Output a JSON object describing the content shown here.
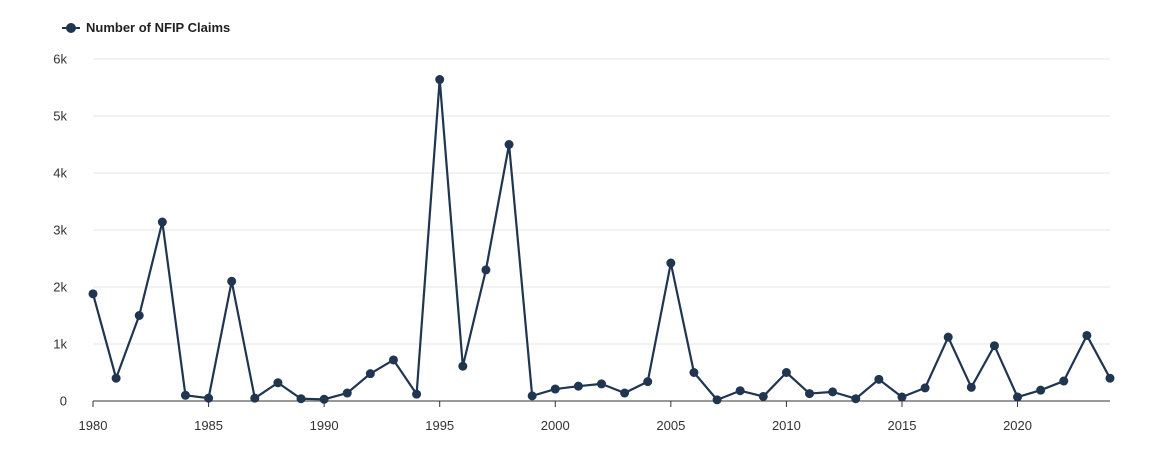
{
  "chart_data": {
    "type": "line",
    "legend_position": "top-left",
    "grid": true,
    "series_color": "#1f3550",
    "x": [
      1980,
      1981,
      1982,
      1983,
      1984,
      1985,
      1986,
      1987,
      1988,
      1989,
      1990,
      1991,
      1992,
      1993,
      1994,
      1995,
      1996,
      1997,
      1998,
      1999,
      2000,
      2001,
      2002,
      2003,
      2004,
      2005,
      2006,
      2007,
      2008,
      2009,
      2010,
      2011,
      2012,
      2013,
      2014,
      2015,
      2016,
      2017,
      2018,
      2019,
      2020,
      2021,
      2022,
      2023,
      2024
    ],
    "series": [
      {
        "name": "Number of NFIP Claims",
        "values": [
          1880,
          400,
          1500,
          3140,
          100,
          50,
          2100,
          50,
          320,
          40,
          30,
          140,
          480,
          720,
          120,
          5640,
          610,
          2300,
          4500,
          90,
          210,
          260,
          300,
          140,
          340,
          2420,
          500,
          20,
          180,
          80,
          500,
          130,
          160,
          40,
          380,
          70,
          230,
          1120,
          240,
          970,
          70,
          190,
          350,
          1150,
          400
        ]
      }
    ],
    "xlim": [
      1980,
      2024
    ],
    "ylim": [
      0,
      6000
    ],
    "x_ticks": [
      1980,
      1985,
      1990,
      1995,
      2000,
      2005,
      2010,
      2015,
      2020
    ],
    "x_tick_labels": [
      "1980",
      "1985",
      "1990",
      "1995",
      "2000",
      "2005",
      "2010",
      "2015",
      "2020"
    ],
    "y_ticks": [
      0,
      1000,
      2000,
      3000,
      4000,
      5000,
      6000
    ],
    "y_tick_labels": [
      "0",
      "1k",
      "2k",
      "3k",
      "4k",
      "5k",
      "6k"
    ]
  }
}
